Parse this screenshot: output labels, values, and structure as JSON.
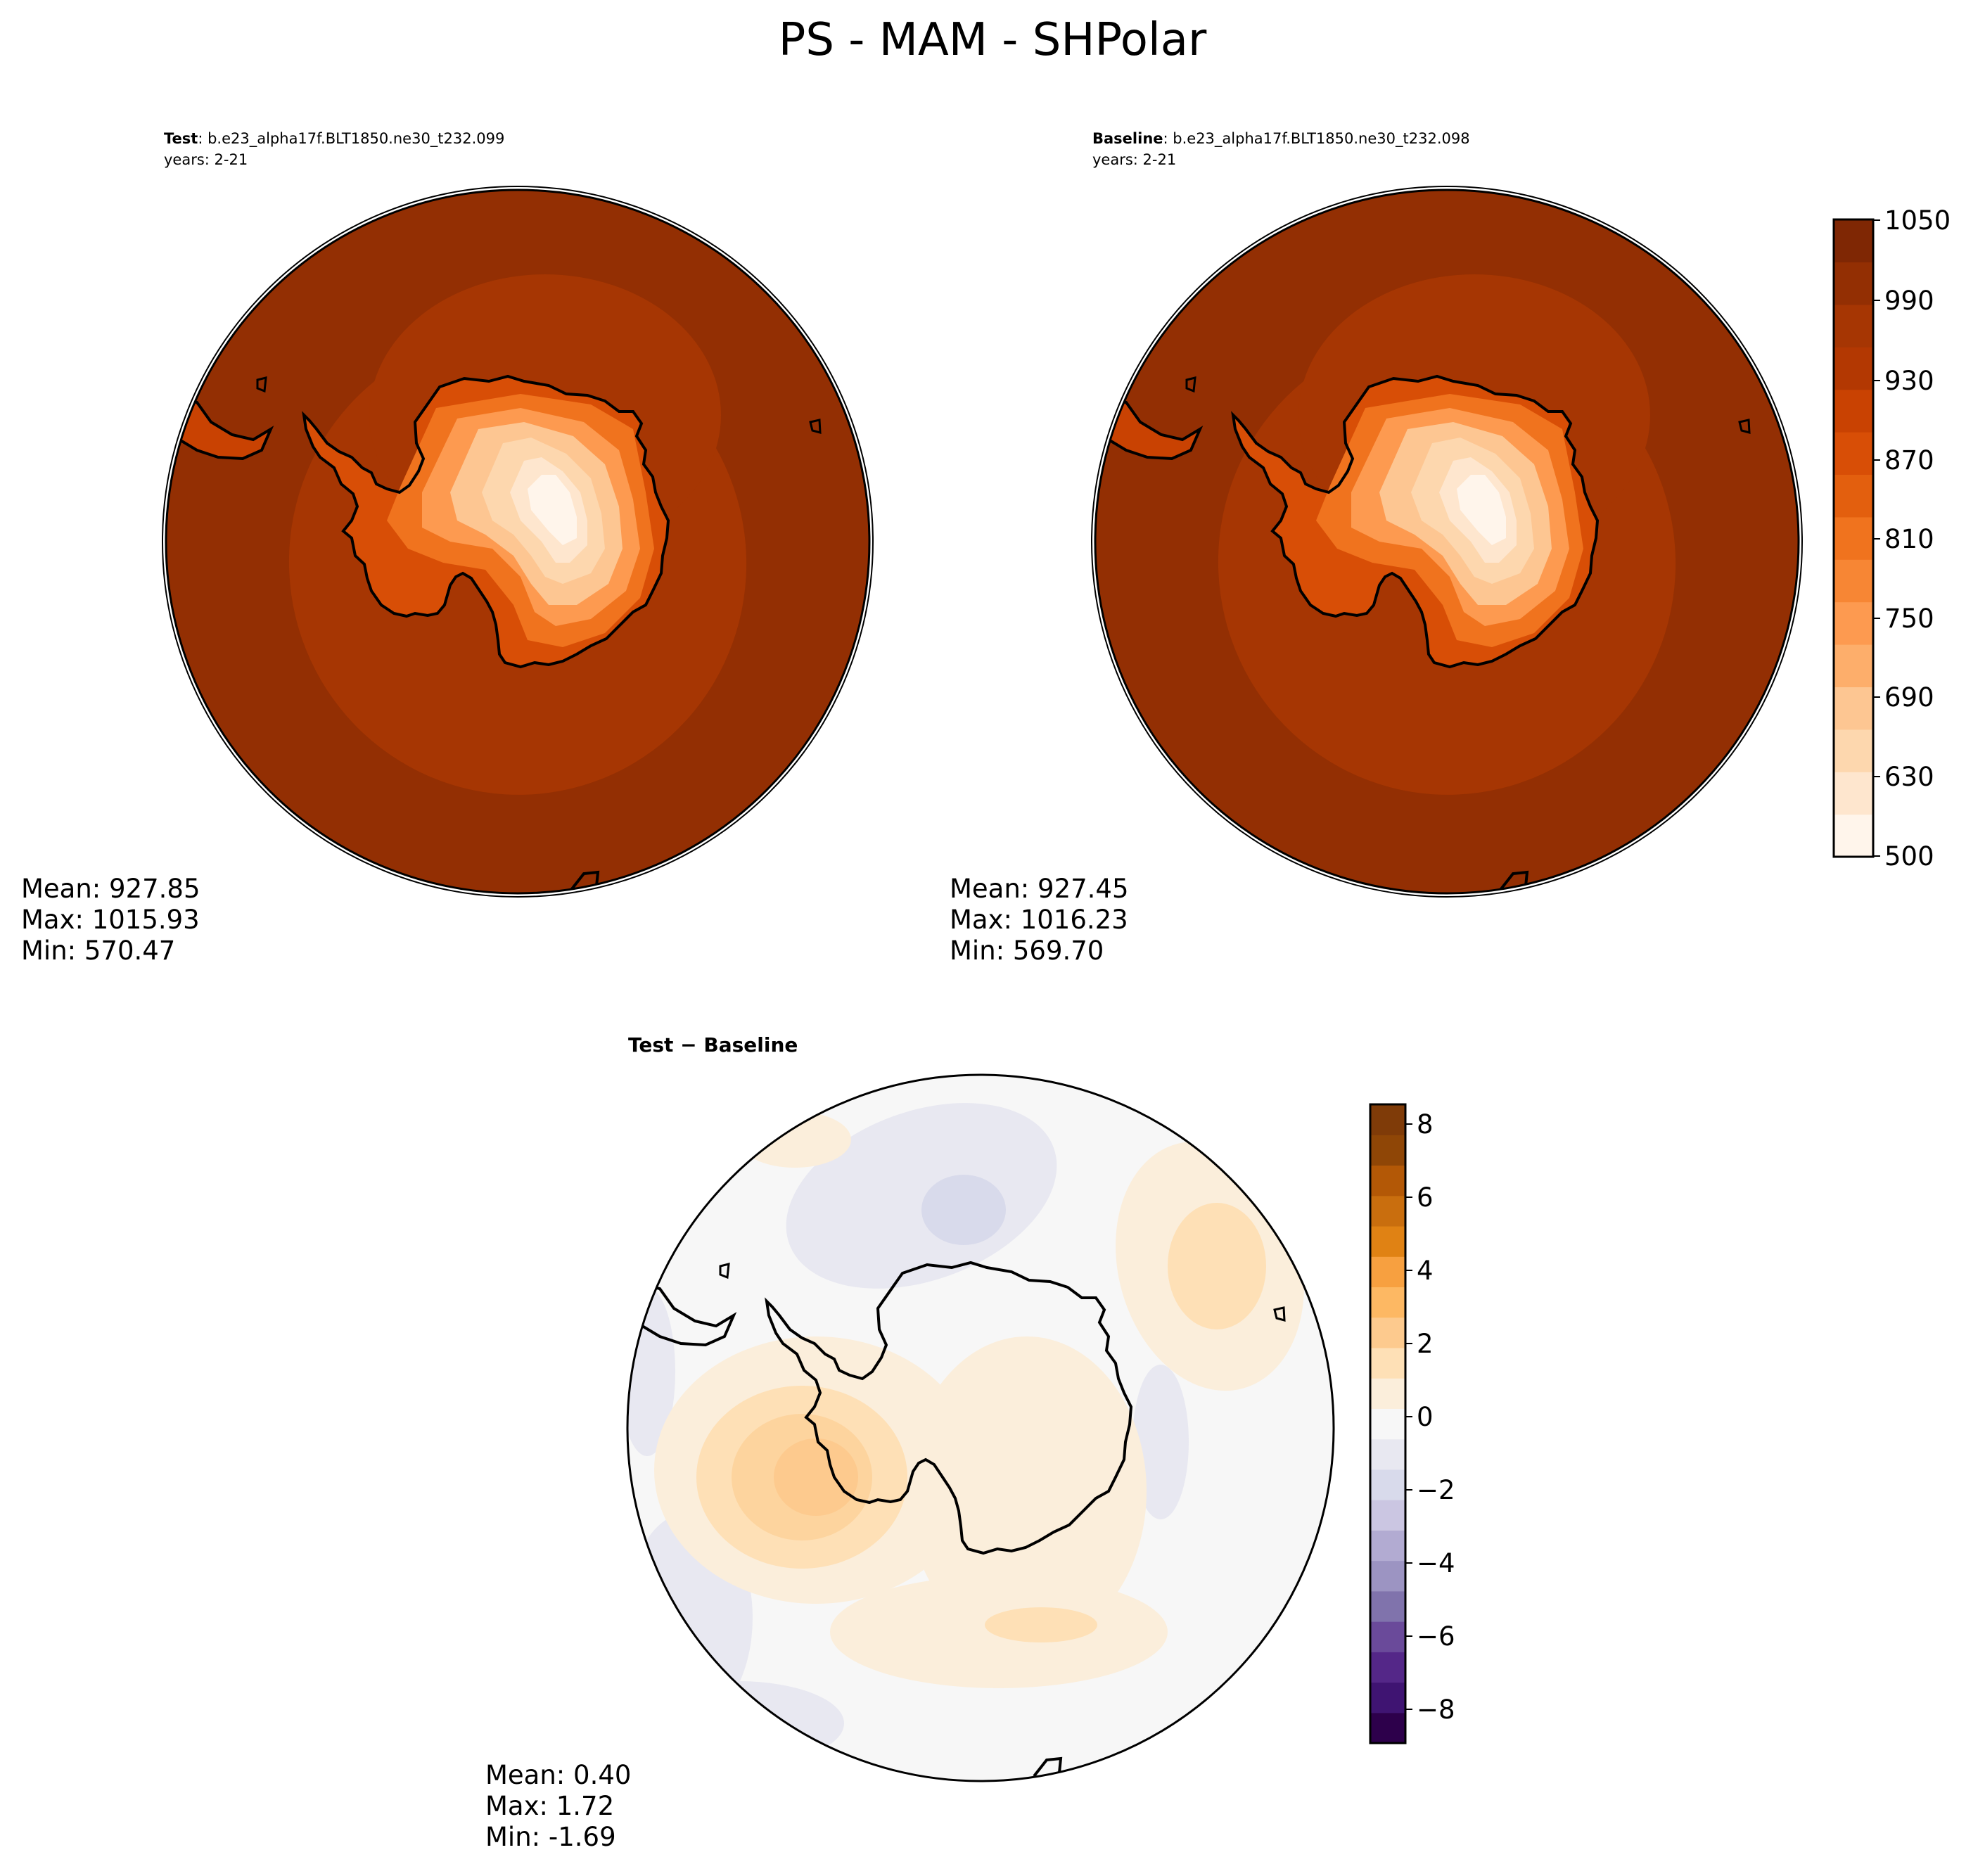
{
  "figure": {
    "title": "PS - MAM - SHPolar"
  },
  "panels": {
    "test": {
      "label_bold": "Test",
      "case": ": b.e23_alpha17f.BLT1850.ne30_t232.099",
      "years": "years: 2-21",
      "stats": [
        "Mean: 927.85",
        "Max: 1015.93",
        "Min: 570.47"
      ]
    },
    "baseline": {
      "label_bold": "Baseline",
      "case": ": b.e23_alpha17f.BLT1850.ne30_t232.098",
      "years": "years: 2-21",
      "stats": [
        "Mean: 927.45",
        "Max: 1016.23",
        "Min: 569.70"
      ]
    },
    "diff": {
      "title": "Test − Baseline",
      "stats": [
        "Mean:  0.40",
        "Max:  1.72",
        "Min: -1.69"
      ]
    }
  },
  "colorbars": {
    "main": {
      "tick_labels": [
        "1050",
        "990",
        "930",
        "870",
        "810",
        "750",
        "690",
        "630",
        "500"
      ],
      "colors": [
        "#fff5eb",
        "#fee6ce",
        "#fdd7ae",
        "#fdc692",
        "#fdae6b",
        "#fd9a50",
        "#f78634",
        "#f0731e",
        "#e35f0e",
        "#d84e06",
        "#c94202",
        "#b33802",
        "#a63603",
        "#932f03",
        "#7f2704"
      ]
    },
    "diff": {
      "tick_labels": [
        "8",
        "6",
        "4",
        "2",
        "0",
        "−2",
        "−4",
        "−6",
        "−8"
      ],
      "colors": [
        "#2d004b",
        "#3f1472",
        "#542788",
        "#6a4a9a",
        "#8073ac",
        "#9c94c2",
        "#b2abd2",
        "#cbc6e2",
        "#d8daeb",
        "#e8e8f1",
        "#f7f7f7",
        "#fbeedb",
        "#fee0b6",
        "#fdca8e",
        "#fdb863",
        "#f7a040",
        "#e08214",
        "#c96e0e",
        "#b35806",
        "#8f4606",
        "#7f3b08"
      ]
    }
  },
  "chart_data": [
    {
      "type": "heatmap",
      "title": "Test : b.e23_alpha17f.BLT1850.ne30_t232.099",
      "subtitle": "years: 2-21",
      "projection": "south polar stereographic",
      "variable": "PS",
      "colorbar_range": [
        500,
        1050
      ],
      "colorbar_ticks": [
        500,
        630,
        690,
        750,
        810,
        870,
        930,
        990,
        1050
      ],
      "stats": {
        "mean": 927.85,
        "max": 1015.93,
        "min": 570.47
      }
    },
    {
      "type": "heatmap",
      "title": "Baseline : b.e23_alpha17f.BLT1850.ne30_t232.098",
      "subtitle": "years: 2-21",
      "projection": "south polar stereographic",
      "variable": "PS",
      "colorbar_range": [
        500,
        1050
      ],
      "colorbar_ticks": [
        500,
        630,
        690,
        750,
        810,
        870,
        930,
        990,
        1050
      ],
      "stats": {
        "mean": 927.45,
        "max": 1016.23,
        "min": 569.7
      }
    },
    {
      "type": "heatmap",
      "title": "Test − Baseline",
      "projection": "south polar stereographic",
      "colorbar_range": [
        -9,
        9
      ],
      "colorbar_ticks": [
        -8,
        -6,
        -4,
        -2,
        0,
        2,
        4,
        6,
        8
      ],
      "stats": {
        "mean": 0.4,
        "max": 1.72,
        "min": -1.69
      }
    }
  ]
}
